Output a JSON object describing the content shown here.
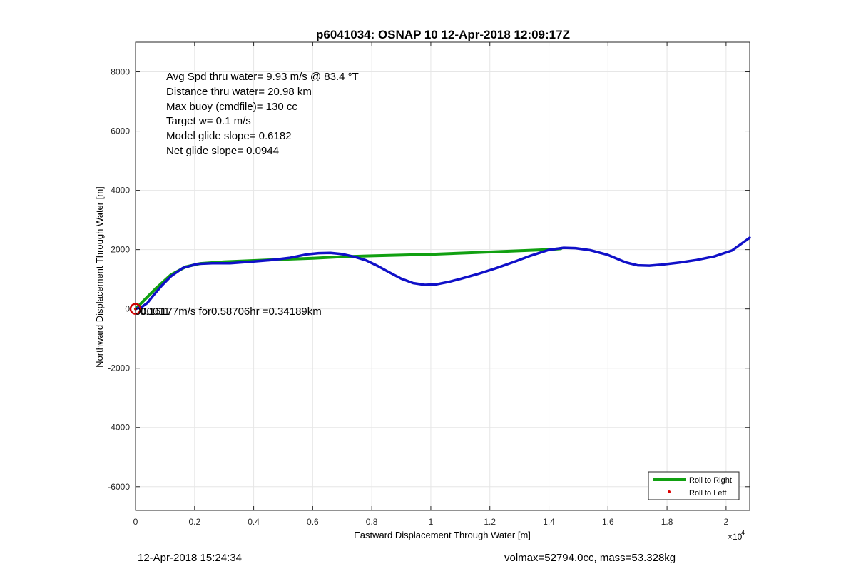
{
  "chart_data": {
    "type": "line",
    "title": "p6041034: OSNAP 10 12-Apr-2018 12:09:17Z",
    "xlabel": "Eastward Displacement Through Water [m]",
    "ylabel": "Northward Displacement Through Water [m]",
    "x_exponent_label": "×10",
    "x_exponent_power": "4",
    "xlim": [
      0,
      20800
    ],
    "ylim": [
      -6800,
      9000
    ],
    "grid": true,
    "x_ticks": [
      0,
      2000,
      4000,
      6000,
      8000,
      10000,
      12000,
      14000,
      16000,
      18000,
      20000
    ],
    "x_tick_labels": [
      "0",
      "0.2",
      "0.4",
      "0.6",
      "0.8",
      "1",
      "1.2",
      "1.4",
      "1.6",
      "1.8",
      "2"
    ],
    "y_ticks": [
      -6000,
      -4000,
      -2000,
      0,
      2000,
      4000,
      6000,
      8000
    ],
    "y_tick_labels": [
      "-6000",
      "-4000",
      "-2000",
      "0",
      "2000",
      "4000",
      "6000",
      "8000"
    ],
    "stats_text": [
      "Avg Spd thru water=  9.93 m/s @  83.4 °T",
      "Distance thru water= 20.98 km",
      "Max buoy (cmdfile)= 130 cc",
      "Target w= 0.1 m/s",
      "Model glide slope= 0.6182",
      "Net glide slope= 0.0944"
    ],
    "annotation": {
      "text": "0.16177m/s for0.58706hr =0.34189km",
      "overlap_text": "000011",
      "x": 0,
      "y": 0
    },
    "start_marker": {
      "x": 0,
      "y": 0,
      "color": "#cc0000"
    },
    "legend": {
      "placement": "bottom-right",
      "entries": [
        {
          "label": "Roll to Right",
          "color": "#11a011",
          "style": "line"
        },
        {
          "label": "Roll to Left",
          "color": "#dd0000",
          "style": "dot"
        }
      ]
    },
    "series": [
      {
        "name": "Roll to Right",
        "color": "#11a011",
        "x": [
          0,
          300,
          700,
          1200,
          1700,
          2200,
          3000,
          4000,
          5000,
          6000,
          7000,
          8000,
          10000,
          12000,
          14000,
          14400
        ],
        "y": [
          0,
          300,
          700,
          1150,
          1420,
          1530,
          1590,
          1630,
          1670,
          1710,
          1760,
          1790,
          1840,
          1920,
          2000,
          2030
        ]
      },
      {
        "color": "#1010c8",
        "x": [
          0,
          200,
          400,
          600,
          900,
          1200,
          1600,
          2100,
          2600,
          3200,
          4000,
          4600,
          5200,
          5800,
          6200,
          6600,
          7000,
          7400,
          7800,
          8200,
          8600,
          9000,
          9400,
          9800,
          10200,
          10600,
          11000,
          11600,
          12200,
          12800,
          13400,
          14000,
          14500,
          14900,
          15400,
          16000,
          16600,
          17000,
          17400,
          17800,
          18400,
          19000,
          19600,
          20200,
          20800
        ],
        "y": [
          0,
          60,
          200,
          450,
          800,
          1100,
          1380,
          1520,
          1540,
          1540,
          1600,
          1650,
          1720,
          1840,
          1880,
          1890,
          1850,
          1760,
          1640,
          1450,
          1230,
          1020,
          870,
          810,
          830,
          910,
          1010,
          1180,
          1370,
          1580,
          1800,
          1990,
          2060,
          2050,
          1980,
          1820,
          1570,
          1470,
          1460,
          1490,
          1560,
          1650,
          1770,
          1970,
          2400
        ]
      }
    ]
  },
  "footer": {
    "timestamp": "12-Apr-2018 15:24:34",
    "summary": "volmax=52794.0cc, mass=53.328kg"
  }
}
